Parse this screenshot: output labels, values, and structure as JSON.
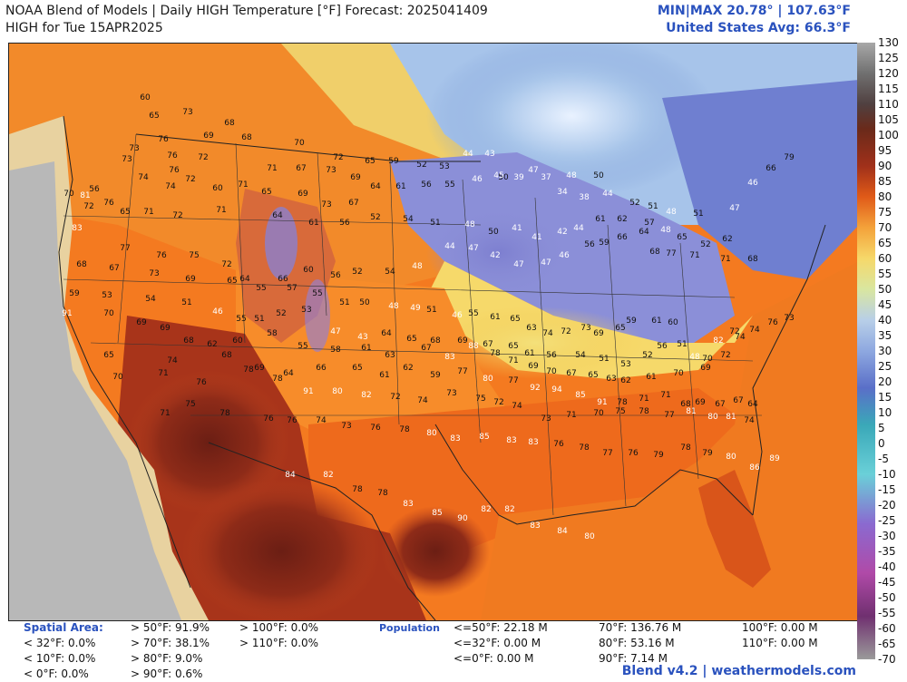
{
  "header": {
    "title_line1": "NOAA Blend of Models | Daily HIGH Temperature [°F] Forecast: 2025041409",
    "title_line2": "HIGH for Tue 15APR2025",
    "minmax": "MIN|MAX 20.78° | 107.63°F",
    "us_avg": "United States Avg: 66.3°F"
  },
  "colorbar": {
    "ticks": [
      "130",
      "125",
      "120",
      "115",
      "110",
      "105",
      "100",
      "95",
      "90",
      "85",
      "80",
      "75",
      "70",
      "65",
      "60",
      "55",
      "50",
      "45",
      "40",
      "35",
      "30",
      "25",
      "20",
      "15",
      "10",
      "5",
      "0",
      "-5",
      "-10",
      "-15",
      "-20",
      "-25",
      "-30",
      "-35",
      "-40",
      "-45",
      "-50",
      "-55",
      "-60",
      "-65",
      "-70"
    ]
  },
  "stats": {
    "spatial_title": "Spatial Area:",
    "spatial_col1": [
      "< 32°F: 0.0%",
      "< 10°F: 0.0%",
      "< 0°F: 0.0%"
    ],
    "spatial_col2": [
      "> 50°F: 91.9%",
      "> 70°F: 38.1%",
      "> 80°F: 9.0%",
      "> 90°F: 0.6%"
    ],
    "spatial_col3": [
      "> 100°F: 0.0%",
      "> 110°F: 0.0%"
    ],
    "population_title": "Population",
    "pop_col1": [
      "<=50°F: 22.18 M",
      "<=32°F: 0.00 M",
      "<=0°F: 0.00 M"
    ],
    "pop_col2": [
      "70°F: 136.76 M",
      "80°F: 53.16 M",
      "90°F: 7.14 M"
    ],
    "pop_col3": [
      "100°F: 0.00 M",
      "110°F: 0.00 M"
    ]
  },
  "footer": "Blend v4.2 | weathermodels.com",
  "map_labels": [
    "60",
    "65",
    "73",
    "68",
    "73",
    "76",
    "69",
    "68",
    "70",
    "72",
    "73",
    "76",
    "74",
    "76",
    "72",
    "71",
    "67",
    "73",
    "69",
    "65",
    "59",
    "52",
    "53",
    "44",
    "43",
    "50",
    "47",
    "48",
    "50",
    "70",
    "81",
    "56",
    "74",
    "72",
    "60",
    "71",
    "65",
    "69",
    "73",
    "67",
    "64",
    "61",
    "56",
    "55",
    "46",
    "45",
    "39",
    "37",
    "34",
    "38",
    "44",
    "52",
    "51",
    "48",
    "51",
    "47",
    "46",
    "66",
    "79",
    "72",
    "76",
    "65",
    "71",
    "72",
    "71",
    "64",
    "61",
    "56",
    "52",
    "54",
    "51",
    "48",
    "50",
    "41",
    "41",
    "42",
    "44",
    "61",
    "62",
    "57",
    "48",
    "65",
    "52",
    "62",
    "83",
    "77",
    "76",
    "75",
    "72",
    "64",
    "66",
    "60",
    "56",
    "52",
    "54",
    "48",
    "44",
    "47",
    "42",
    "47",
    "47",
    "46",
    "56",
    "59",
    "66",
    "64",
    "68",
    "77",
    "71",
    "71",
    "68",
    "68",
    "67",
    "73",
    "69",
    "65",
    "55",
    "57",
    "55",
    "51",
    "50",
    "48",
    "49",
    "51",
    "46",
    "55",
    "61",
    "65",
    "63",
    "74",
    "72",
    "73",
    "69",
    "65",
    "59",
    "61",
    "60",
    "59",
    "53",
    "54",
    "51",
    "46",
    "55",
    "51",
    "52",
    "53",
    "47",
    "43",
    "64",
    "65",
    "68",
    "69",
    "67",
    "65",
    "61",
    "56",
    "54",
    "51",
    "53",
    "52",
    "56",
    "51",
    "48",
    "70",
    "82",
    "72",
    "74",
    "76",
    "73",
    "70",
    "69",
    "69",
    "68",
    "62",
    "60",
    "58",
    "55",
    "58",
    "61",
    "63",
    "67",
    "83",
    "88",
    "78",
    "71",
    "69",
    "70",
    "67",
    "65",
    "63",
    "62",
    "61",
    "70",
    "69",
    "72",
    "74",
    "91",
    "65",
    "74",
    "68",
    "69",
    "64",
    "66",
    "65",
    "61",
    "62",
    "59",
    "77",
    "80",
    "77",
    "92",
    "94",
    "85",
    "91",
    "78",
    "71",
    "71",
    "68",
    "69",
    "67",
    "67",
    "64",
    "70",
    "71",
    "76",
    "78",
    "78",
    "91",
    "80",
    "82",
    "72",
    "74",
    "73",
    "75",
    "72",
    "74",
    "73",
    "71",
    "70",
    "75",
    "78",
    "77",
    "81",
    "80",
    "81",
    "74",
    "71",
    "75",
    "78",
    "76",
    "76",
    "74",
    "73",
    "76",
    "78",
    "80",
    "83",
    "85",
    "83",
    "83",
    "76",
    "78",
    "77",
    "76",
    "79",
    "78",
    "79",
    "80",
    "86",
    "89",
    "84",
    "82",
    "78",
    "78",
    "83",
    "85",
    "90",
    "82",
    "82",
    "83",
    "84",
    "80"
  ]
}
